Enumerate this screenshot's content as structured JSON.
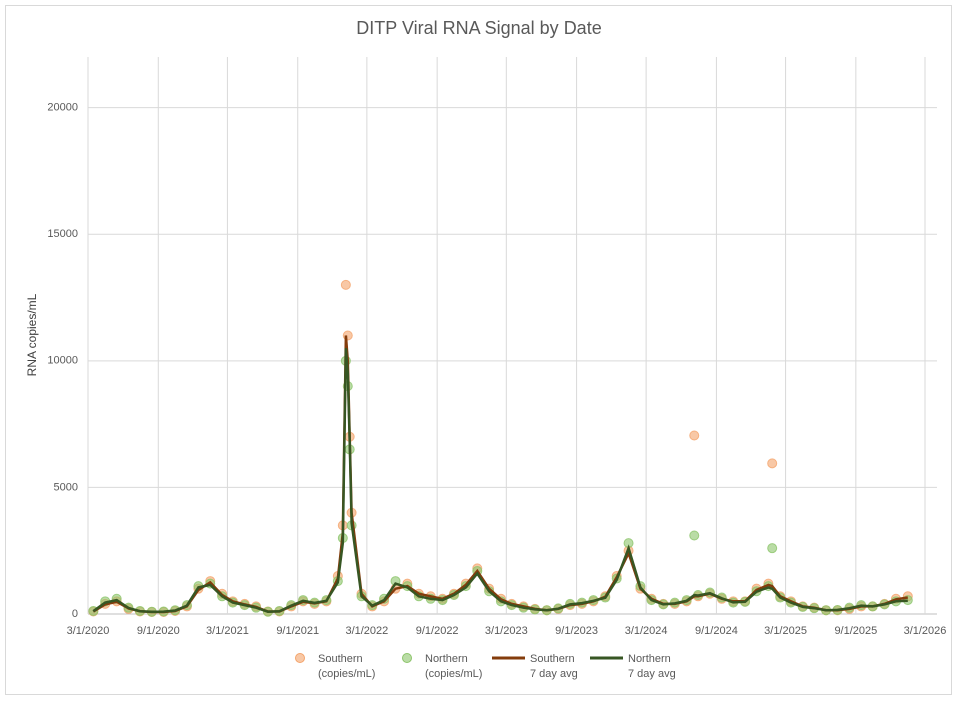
{
  "chart_data": {
    "type": "scatter",
    "title": "DITP Viral RNA Signal by Date",
    "y_label": "RNA copies/mL",
    "x": [
      "3/15/2020",
      "4/15/2020",
      "5/15/2020",
      "6/15/2020",
      "7/15/2020",
      "8/15/2020",
      "9/15/2020",
      "10/15/2020",
      "11/15/2020",
      "12/15/2020",
      "1/15/2021",
      "2/15/2021",
      "3/15/2021",
      "4/15/2021",
      "5/15/2021",
      "6/15/2021",
      "7/15/2021",
      "8/15/2021",
      "9/15/2021",
      "10/15/2021",
      "11/15/2021",
      "12/15/2021",
      "12/28/2021",
      "1/5/2022",
      "1/10/2022",
      "1/15/2022",
      "1/20/2022",
      "2/15/2022",
      "3/15/2022",
      "4/15/2022",
      "5/15/2022",
      "6/15/2022",
      "7/15/2022",
      "8/15/2022",
      "9/15/2022",
      "10/15/2022",
      "11/15/2022",
      "12/15/2022",
      "1/15/2023",
      "2/15/2023",
      "3/15/2023",
      "4/15/2023",
      "5/15/2023",
      "6/15/2023",
      "7/15/2023",
      "8/15/2023",
      "9/15/2023",
      "10/15/2023",
      "11/15/2023",
      "12/15/2023",
      "1/15/2024",
      "2/15/2024",
      "3/15/2024",
      "4/15/2024",
      "5/15/2024",
      "6/15/2024",
      "7/5/2024",
      "7/15/2024",
      "8/15/2024",
      "9/15/2024",
      "10/15/2024",
      "11/15/2024",
      "12/15/2024",
      "1/15/2025",
      "1/25/2025",
      "2/15/2025",
      "3/15/2025",
      "4/15/2025",
      "5/15/2025",
      "6/15/2025",
      "7/15/2025",
      "8/15/2025",
      "9/15/2025",
      "10/15/2025",
      "11/15/2025",
      "12/15/2025",
      "1/15/2026"
    ],
    "series": [
      {
        "name": "Southern (copies/mL)",
        "type": "scatter",
        "color": "#f4a46b",
        "values": [
          100,
          400,
          500,
          200,
          100,
          80,
          80,
          120,
          300,
          1000,
          1300,
          800,
          500,
          400,
          300,
          100,
          100,
          300,
          500,
          400,
          500,
          1500,
          3500,
          13000,
          11000,
          7000,
          4000,
          800,
          300,
          500,
          1000,
          1200,
          800,
          700,
          600,
          800,
          1200,
          1800,
          1000,
          600,
          400,
          300,
          200,
          150,
          200,
          350,
          400,
          500,
          700,
          1500,
          2500,
          1000,
          600,
          400,
          400,
          500,
          7050,
          700,
          800,
          600,
          500,
          500,
          1000,
          1200,
          5950,
          700,
          500,
          300,
          250,
          150,
          150,
          200,
          300,
          300,
          400,
          600,
          700
        ]
      },
      {
        "name": "Northern (copies/mL)",
        "type": "scatter",
        "color": "#8cc46a",
        "values": [
          120,
          500,
          600,
          250,
          120,
          90,
          100,
          150,
          350,
          1100,
          1200,
          700,
          450,
          350,
          250,
          90,
          120,
          350,
          550,
          450,
          550,
          1300,
          3000,
          10000,
          9000,
          6500,
          3500,
          700,
          350,
          600,
          1300,
          1100,
          700,
          600,
          550,
          750,
          1100,
          1700,
          900,
          500,
          350,
          250,
          180,
          150,
          220,
          400,
          450,
          550,
          650,
          1400,
          2800,
          1100,
          550,
          380,
          450,
          550,
          3100,
          750,
          850,
          650,
          450,
          480,
          900,
          1100,
          2600,
          650,
          450,
          280,
          230,
          150,
          160,
          250,
          350,
          300,
          380,
          500,
          550
        ]
      },
      {
        "name": "Southern 7 day avg",
        "type": "line",
        "color": "#843c0c",
        "values": [
          100,
          380,
          480,
          220,
          110,
          80,
          80,
          120,
          300,
          950,
          1250,
          750,
          500,
          380,
          280,
          100,
          100,
          300,
          480,
          420,
          500,
          1400,
          3200,
          11000,
          10000,
          7000,
          4000,
          800,
          300,
          500,
          1000,
          1100,
          800,
          700,
          600,
          800,
          1150,
          1700,
          1000,
          580,
          400,
          300,
          200,
          150,
          200,
          350,
          400,
          500,
          680,
          1450,
          2400,
          1000,
          600,
          400,
          400,
          500,
          700,
          700,
          800,
          600,
          500,
          500,
          950,
          1150,
          1100,
          700,
          500,
          300,
          250,
          150,
          150,
          200,
          300,
          300,
          400,
          580,
          650
        ]
      },
      {
        "name": "Northern 7 day avg",
        "type": "line",
        "color": "#375623",
        "values": [
          110,
          450,
          550,
          240,
          110,
          90,
          95,
          140,
          330,
          1050,
          1150,
          700,
          450,
          350,
          250,
          90,
          110,
          330,
          520,
          440,
          520,
          1250,
          2800,
          10500,
          9500,
          6800,
          3600,
          700,
          330,
          550,
          1200,
          1050,
          700,
          600,
          550,
          750,
          1050,
          1600,
          900,
          500,
          350,
          250,
          180,
          150,
          210,
          380,
          430,
          520,
          640,
          1350,
          2600,
          1050,
          550,
          380,
          420,
          520,
          750,
          730,
          820,
          620,
          460,
          480,
          880,
          1050,
          1000,
          650,
          450,
          280,
          230,
          150,
          160,
          230,
          330,
          300,
          380,
          500,
          520
        ]
      }
    ],
    "xlim": [
      "3/1/2020",
      "3/1/2026"
    ],
    "xticks": [
      "3/1/2020",
      "9/1/2020",
      "3/1/2021",
      "9/1/2021",
      "3/1/2022",
      "9/1/2022",
      "3/1/2023",
      "9/1/2023",
      "3/1/2024",
      "9/1/2024",
      "3/1/2025",
      "9/1/2025",
      "3/1/2026"
    ],
    "ylim": [
      0,
      22000
    ],
    "yticks": [
      0,
      5000,
      10000,
      15000,
      20000
    ],
    "grid": true
  }
}
